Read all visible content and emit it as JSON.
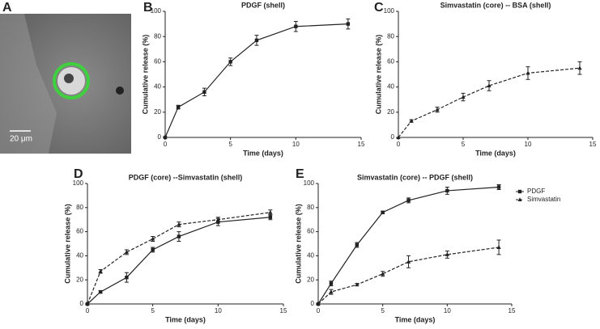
{
  "image_panel": {
    "label": "A",
    "scale_bar": "20 μm"
  },
  "chart_data": [
    {
      "type": "line",
      "label": "B",
      "title": "PDGF (shell)",
      "x_label": "Time (days)",
      "y_label": "Cumulative release (%)",
      "x": [
        0,
        1,
        3,
        5,
        7,
        10,
        14
      ],
      "xlim": [
        0,
        15
      ],
      "xticks": [
        0,
        5,
        10,
        15
      ],
      "ylim": [
        0,
        100
      ],
      "yticks": [
        0,
        20,
        40,
        60,
        80,
        100
      ],
      "series": [
        {
          "color": "#222222",
          "dash": false,
          "marker": "square",
          "values": [
            0,
            24,
            36,
            60,
            77,
            88,
            90
          ],
          "errors": [
            0,
            1.5,
            3,
            3,
            4,
            4,
            4
          ]
        }
      ]
    },
    {
      "type": "line",
      "label": "C",
      "title": "Simvastatin (core) -- BSA (shell)",
      "x_label": "Time (days)",
      "y_label": "Cumulative release (%)",
      "x": [
        0,
        1,
        3,
        5,
        7,
        10,
        14
      ],
      "xlim": [
        0,
        15
      ],
      "xticks": [
        0,
        5,
        10,
        15
      ],
      "ylim": [
        0,
        100
      ],
      "yticks": [
        0,
        20,
        40,
        60,
        80,
        100
      ],
      "series": [
        {
          "color": "#222222",
          "dash": true,
          "marker": "triangle",
          "values": [
            0,
            13,
            22,
            32,
            41,
            51,
            55
          ],
          "errors": [
            0,
            1,
            2,
            3,
            4,
            5,
            5
          ]
        }
      ]
    },
    {
      "type": "line",
      "label": "D",
      "title": "PDGF (core) --Simvastatin (shell)",
      "x_label": "Time (days)",
      "y_label": "Cumulative release (%)",
      "x": [
        0,
        1,
        3,
        5,
        7,
        10,
        14
      ],
      "xlim": [
        0,
        15
      ],
      "xticks": [
        0,
        5,
        10,
        15
      ],
      "ylim": [
        0,
        100
      ],
      "yticks": [
        0,
        20,
        40,
        60,
        80,
        100
      ],
      "series": [
        {
          "color": "#222222",
          "dash": false,
          "marker": "square",
          "values": [
            0,
            10,
            22,
            45,
            56,
            68,
            72
          ],
          "errors": [
            0,
            1,
            4,
            2,
            4,
            3,
            2
          ]
        },
        {
          "color": "#222222",
          "dash": true,
          "marker": "triangle",
          "values": [
            0,
            27,
            43,
            54,
            66,
            70,
            76
          ],
          "errors": [
            0,
            1.5,
            2,
            2,
            2,
            2,
            2
          ]
        }
      ]
    },
    {
      "type": "line",
      "label": "E",
      "title": "Simvastatin (core) -- PDGF (shell)",
      "x_label": "Time (days)",
      "y_label": "Cumulative release (%)",
      "x": [
        0,
        1,
        3,
        5,
        7,
        10,
        14
      ],
      "xlim": [
        0,
        15
      ],
      "xticks": [
        0,
        5,
        10,
        15
      ],
      "ylim": [
        0,
        100
      ],
      "yticks": [
        0,
        20,
        40,
        60,
        80,
        100
      ],
      "legend": "upper right",
      "series": [
        {
          "name": "PDGF",
          "color": "#222222",
          "dash": false,
          "marker": "square",
          "values": [
            0,
            17,
            49,
            76,
            86,
            94,
            97
          ],
          "errors": [
            0,
            2,
            2,
            1,
            2,
            3,
            2
          ]
        },
        {
          "name": "Simvastatin",
          "color": "#222222",
          "dash": true,
          "marker": "triangle",
          "values": [
            0,
            10,
            16,
            25,
            35,
            41,
            47
          ],
          "errors": [
            0,
            2,
            1,
            2,
            5,
            3,
            6
          ]
        }
      ]
    }
  ]
}
